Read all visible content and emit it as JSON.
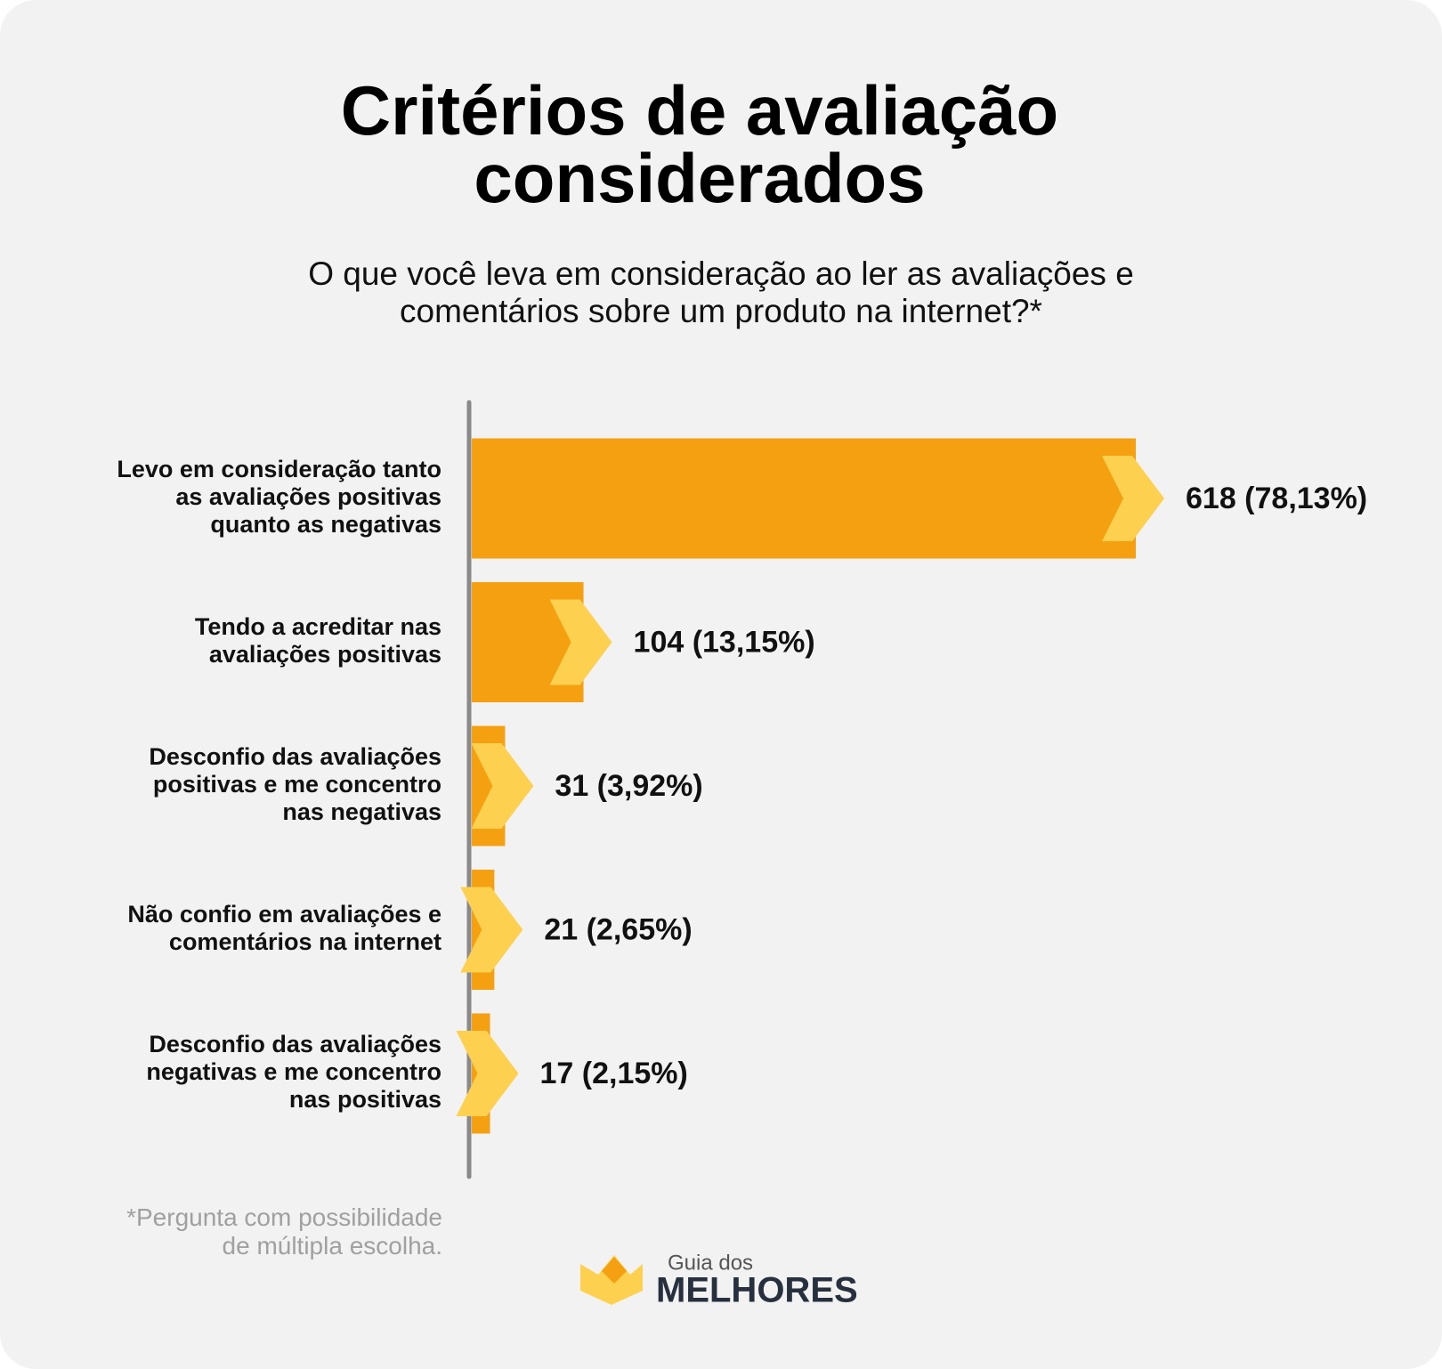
{
  "chart_data": {
    "type": "bar",
    "title": "Critérios de avaliação\nconsiderados",
    "subtitle": "O que você leva em consideração ao ler as avaliações e\ncomentários sobre um produto na internet?*",
    "categories": [
      "Levo em consideração tanto\nas avaliações positivas\nquanto as negativas",
      "Tendo a acreditar nas\navaliações positivas",
      "Desconfio das avaliações\npositivas e me concentro\nnas negativas",
      "Não confio em avaliações e\ncomentários na internet",
      "Desconfio das avaliações\nnegativas e me concentro\nnas positivas"
    ],
    "values": [
      618,
      104,
      31,
      21,
      17
    ],
    "value_labels": [
      "618 (78,13%)",
      "104 (13,15%)",
      "31 (3,92%)",
      "21 (2,65%)",
      "17 (2,15%)"
    ],
    "color": "#f5a010",
    "accent_color": "#fdd14f",
    "footnote": "*Pergunta com possibilidade\nde múltipla escolha."
  },
  "logo": {
    "top": "Guia dos",
    "bottom": "MELHORES"
  }
}
